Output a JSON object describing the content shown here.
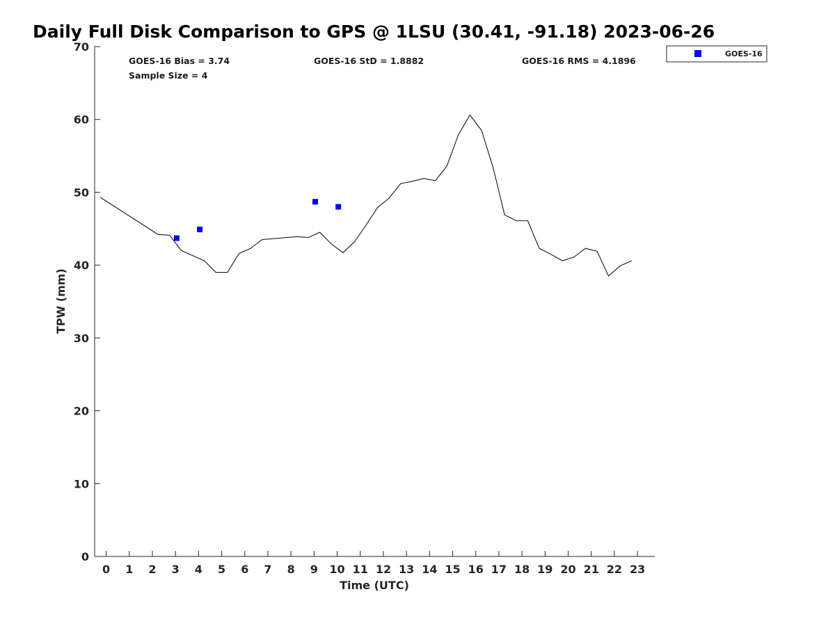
{
  "chart_data": {
    "type": "line",
    "title": "Daily Full Disk Comparison to GPS @ 1LSU (30.41, -91.18) 2023-06-26",
    "xlabel": "Time (UTC)",
    "ylabel": "TPW (mm)",
    "xlim": [
      -0.5,
      23.75
    ],
    "ylim": [
      0,
      70
    ],
    "x_ticks": [
      0,
      1,
      2,
      3,
      4,
      5,
      6,
      7,
      8,
      9,
      10,
      11,
      12,
      13,
      14,
      15,
      16,
      17,
      18,
      19,
      20,
      21,
      22,
      23
    ],
    "y_ticks": [
      0,
      10,
      20,
      30,
      40,
      50,
      60,
      70
    ],
    "grid": false,
    "legend_position": "outside-top-right",
    "stats": {
      "bias": "GOES-16 Bias = 3.74",
      "std": "GOES-16 StD = 1.8882",
      "rms": "GOES-16 RMS = 4.1896",
      "sample": "Sample Size = 4"
    },
    "series": [
      {
        "role": "gps",
        "style": "line",
        "color": "#000000",
        "x": [
          -0.25,
          2.25,
          2.75,
          3.25,
          4.25,
          4.75,
          5.25,
          5.75,
          6.25,
          6.75,
          8.25,
          8.75,
          9.25,
          9.75,
          10.25,
          10.75,
          11.25,
          11.75,
          12.25,
          12.75,
          13.25,
          13.75,
          14.25,
          14.75,
          15.25,
          15.75,
          16.25,
          16.75,
          17.25,
          17.75,
          18.25,
          18.75,
          19.25,
          19.75,
          20.25,
          20.75,
          21.25,
          21.75,
          22.25,
          22.75
        ],
        "y": [
          49.3,
          44.2,
          44.1,
          42.0,
          40.6,
          39.0,
          39.0,
          41.6,
          42.3,
          43.5,
          43.9,
          43.8,
          44.5,
          42.9,
          41.7,
          43.2,
          45.5,
          47.9,
          49.2,
          51.2,
          51.5,
          51.9,
          51.6,
          53.6,
          57.9,
          60.6,
          58.5,
          53.4,
          46.9,
          46.1,
          46.1,
          42.3,
          41.5,
          40.6,
          41.1,
          42.3,
          41.9,
          38.5,
          39.9,
          40.6
        ]
      },
      {
        "name": "GOES-16",
        "style": "markers",
        "marker": "square",
        "color": "#0000ff",
        "x": [
          3.05,
          4.05,
          9.05,
          10.05
        ],
        "y": [
          43.7,
          44.9,
          48.7,
          48.0
        ]
      }
    ]
  }
}
